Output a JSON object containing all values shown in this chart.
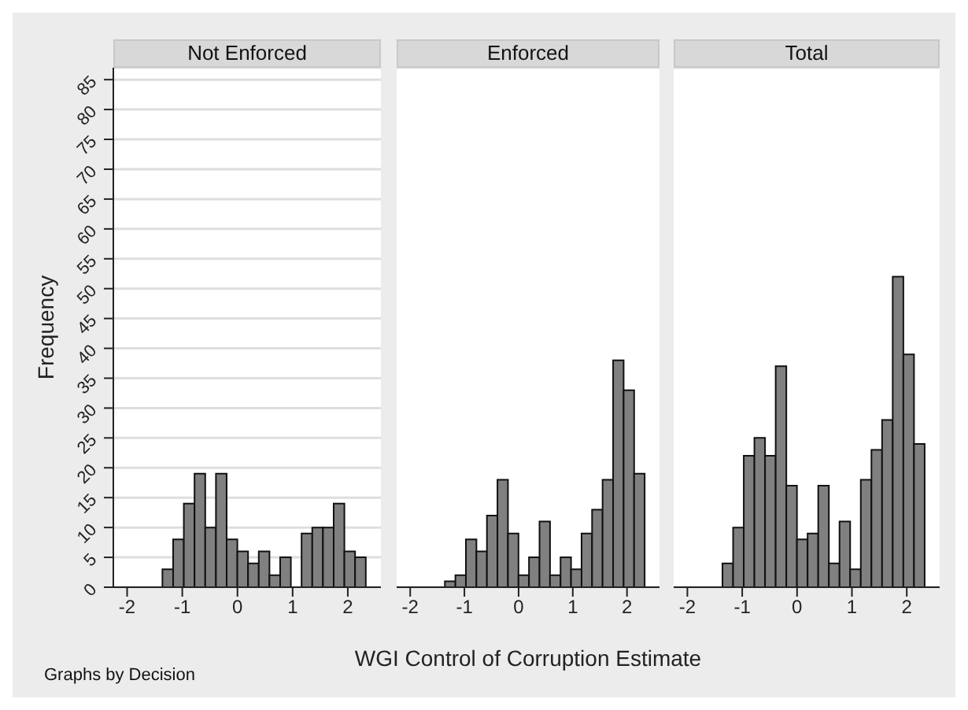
{
  "chart_data": [
    {
      "type": "histogram",
      "title": "Not Enforced",
      "ylabel": "Frequency",
      "annotations": [
        "Graphs by Decision"
      ],
      "bins": [
        -1.36,
        -1.166,
        -0.972,
        -0.778,
        -0.584,
        -0.39,
        -0.196,
        -0.002,
        0.192,
        0.386,
        0.58,
        0.774,
        0.968,
        1.162,
        1.356,
        1.55,
        1.744,
        1.938,
        2.132,
        2.326
      ],
      "values": [
        3,
        8,
        14,
        19,
        10,
        19,
        8,
        6,
        4,
        6,
        2,
        5,
        0,
        9,
        10,
        10,
        14,
        6,
        5
      ],
      "color": "#808080",
      "xlim": [
        -2.25,
        2.6
      ],
      "xticks": [
        -2,
        -1,
        0,
        1,
        2
      ],
      "ylim": [
        0,
        87
      ],
      "yticks": [
        0,
        5,
        10,
        15,
        20,
        25,
        30,
        35,
        40,
        45,
        50,
        55,
        60,
        65,
        70,
        75,
        80,
        85
      ],
      "grid": "y"
    },
    {
      "type": "histogram",
      "title": "Enforced",
      "xlabel": "WGI Control of Corruption Estimate",
      "bins": [
        -1.36,
        -1.166,
        -0.972,
        -0.778,
        -0.584,
        -0.39,
        -0.196,
        -0.002,
        0.192,
        0.386,
        0.58,
        0.774,
        0.968,
        1.162,
        1.356,
        1.55,
        1.744,
        1.938,
        2.132,
        2.326
      ],
      "values": [
        1,
        2,
        8,
        6,
        12,
        18,
        9,
        2,
        5,
        11,
        2,
        5,
        3,
        9,
        13,
        18,
        38,
        33,
        19
      ],
      "color": "#808080",
      "xlim": [
        -2.25,
        2.6
      ],
      "xticks": [
        -2,
        -1,
        0,
        1,
        2
      ],
      "ylim": [
        0,
        87
      ],
      "yticks": [
        0,
        5,
        10,
        15,
        20,
        25,
        30,
        35,
        40,
        45,
        50,
        55,
        60,
        65,
        70,
        75,
        80,
        85
      ],
      "grid": "y",
      "tick_labels": "x"
    },
    {
      "type": "histogram",
      "title": "Total",
      "bins": [
        -1.36,
        -1.166,
        -0.972,
        -0.778,
        -0.584,
        -0.39,
        -0.196,
        -0.002,
        0.192,
        0.386,
        0.58,
        0.774,
        0.968,
        1.162,
        1.356,
        1.55,
        1.744,
        1.938,
        2.132,
        2.326
      ],
      "values": [
        4,
        10,
        22,
        25,
        22,
        37,
        17,
        8,
        9,
        17,
        4,
        11,
        3,
        18,
        23,
        28,
        52,
        39,
        24
      ],
      "color": "#808080",
      "xlim": [
        -2.25,
        2.6
      ],
      "xticks": [
        -2,
        -1,
        0,
        1,
        2
      ],
      "ylim": [
        0,
        87
      ],
      "yticks": [
        0,
        5,
        10,
        15,
        20,
        25,
        30,
        35,
        40,
        45,
        50,
        55,
        60,
        65,
        70,
        75,
        80,
        85
      ],
      "grid": "y",
      "tick_labels": "x"
    }
  ]
}
